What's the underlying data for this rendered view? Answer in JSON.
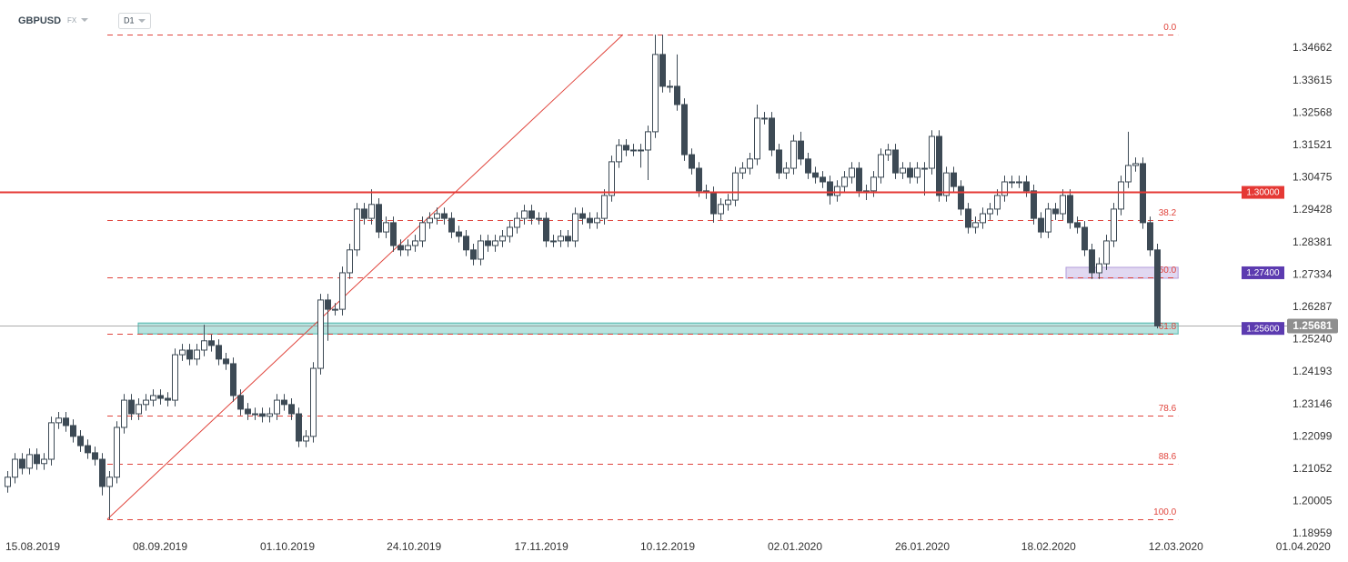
{
  "header": {
    "symbol": "GBPUSD",
    "market": "FX",
    "timeframe": "D1"
  },
  "chart_data": {
    "type": "candlestick",
    "up_color": "#ffffff",
    "down_color": "#3d4a55",
    "outline_color": "#3d4a55",
    "open": [
      1.2049,
      1.2079,
      1.2137,
      1.2108,
      1.2152,
      1.2123,
      1.2137,
      1.2255,
      1.227,
      1.2246,
      1.2211,
      1.2181,
      1.2158,
      1.2137,
      1.2049,
      1.2079,
      1.224,
      1.2328,
      1.2284,
      1.2314,
      1.2328,
      1.2343,
      1.2334,
      1.2328,
      1.2475,
      1.249,
      1.2461,
      1.249,
      1.252,
      1.2505,
      1.2461,
      1.2446,
      1.2343,
      1.2299,
      1.2284,
      1.2284,
      1.2276,
      1.2284,
      1.2328,
      1.2314,
      1.2284,
      1.2196,
      1.2211,
      1.2431,
      1.2652,
      1.2622,
      1.2622,
      1.274,
      1.2814,
      1.2946,
      1.2916,
      1.2961,
      1.2872,
      1.2902,
      1.2828,
      1.2814,
      1.2828,
      1.2843,
      1.2902,
      1.2916,
      1.2931,
      1.2916,
      1.2872,
      1.2858,
      1.2814,
      1.2784,
      1.2843,
      1.2828,
      1.2843,
      1.2858,
      1.2887,
      1.2916,
      1.294,
      1.2916,
      1.2916,
      1.2843,
      1.2843,
      1.2858,
      1.2843,
      1.2931,
      1.2916,
      1.2902,
      1.2916,
      1.299,
      1.3099,
      1.3152,
      1.3137,
      1.3137,
      1.3137,
      1.3196,
      1.3446,
      1.3343,
      1.3343,
      1.3284,
      1.3122,
      1.3078,
      1.3005,
      1.2999,
      1.2931,
      1.2961,
      1.2975,
      1.3063,
      1.3078,
      1.3108,
      1.324,
      1.324,
      1.3137,
      1.3063,
      1.3078,
      1.3166,
      1.3108,
      1.3063,
      1.3049,
      1.3034,
      1.299,
      1.3019,
      1.3049,
      1.3078,
      1.3005,
      1.3005,
      1.3049,
      1.3122,
      1.3137,
      1.3063,
      1.3078,
      1.3049,
      1.3078,
      1.3078,
      1.3181,
      1.299,
      1.3063,
      1.3019,
      1.2946,
      1.2887,
      1.2902,
      1.2931,
      1.2946,
      1.299,
      1.3034,
      1.3034,
      1.3034,
      1.3005,
      1.2916,
      1.2872,
      1.2946,
      1.2931,
      1.299,
      1.2902,
      1.2887,
      1.2814,
      1.274,
      1.2769,
      1.2843,
      1.2946,
      1.3034,
      1.3087,
      1.3093,
      1.2902,
      1.2814
    ],
    "high": [
      1.2099,
      1.2157,
      1.2157,
      1.2172,
      1.2172,
      1.2157,
      1.2275,
      1.229,
      1.229,
      1.2266,
      1.2231,
      1.2201,
      1.2178,
      1.2157,
      1.2099,
      1.226,
      1.2348,
      1.2348,
      1.2334,
      1.2348,
      1.2363,
      1.2363,
      1.2354,
      1.2495,
      1.251,
      1.251,
      1.251,
      1.2572,
      1.254,
      1.2525,
      1.2481,
      1.2466,
      1.2363,
      1.2319,
      1.2304,
      1.2304,
      1.2304,
      1.2348,
      1.2348,
      1.2334,
      1.2304,
      1.2231,
      1.2451,
      1.2672,
      1.2672,
      1.2642,
      1.276,
      1.2834,
      1.2966,
      1.2966,
      1.301,
      1.2981,
      1.2922,
      1.2922,
      1.2848,
      1.2848,
      1.2863,
      1.2922,
      1.2936,
      1.2951,
      1.2951,
      1.2936,
      1.2892,
      1.2878,
      1.2834,
      1.2863,
      1.2863,
      1.2863,
      1.2878,
      1.2907,
      1.2936,
      1.296,
      1.296,
      1.2936,
      1.2936,
      1.2863,
      1.2878,
      1.2878,
      1.2951,
      1.2951,
      1.2936,
      1.2936,
      1.301,
      1.3119,
      1.3172,
      1.3172,
      1.3157,
      1.3157,
      1.3216,
      1.351,
      1.351,
      1.3363,
      1.3446,
      1.3304,
      1.3142,
      1.3098,
      1.3025,
      1.3019,
      1.2981,
      1.2995,
      1.3083,
      1.3098,
      1.3128,
      1.3284,
      1.326,
      1.326,
      1.3157,
      1.3098,
      1.3186,
      1.3196,
      1.3128,
      1.3083,
      1.3069,
      1.3054,
      1.3039,
      1.3069,
      1.3098,
      1.3098,
      1.3025,
      1.3069,
      1.3142,
      1.3157,
      1.3157,
      1.3098,
      1.3098,
      1.3098,
      1.3098,
      1.3201,
      1.3201,
      1.3083,
      1.3083,
      1.3039,
      1.2966,
      1.2922,
      1.2951,
      1.2966,
      1.301,
      1.3054,
      1.3054,
      1.3054,
      1.3054,
      1.3025,
      1.2936,
      1.2966,
      1.2966,
      1.301,
      1.301,
      1.2922,
      1.2907,
      1.2834,
      1.2789,
      1.2863,
      1.2966,
      1.3054,
      1.3196,
      1.3113,
      1.3113,
      1.2922,
      1.2834
    ],
    "low": [
      1.2029,
      1.2059,
      1.2088,
      1.2088,
      1.2103,
      1.2103,
      1.2117,
      1.2235,
      1.2226,
      1.2191,
      1.2161,
      1.2138,
      1.2117,
      1.202,
      1.1943,
      1.2059,
      1.222,
      1.2264,
      1.2264,
      1.2294,
      1.2308,
      1.2314,
      1.2308,
      1.2308,
      1.2455,
      1.2441,
      1.2441,
      1.247,
      1.2485,
      1.2441,
      1.2426,
      1.2323,
      1.2279,
      1.2264,
      1.2264,
      1.2256,
      1.2256,
      1.2264,
      1.2294,
      1.2264,
      1.2176,
      1.2176,
      1.2191,
      1.2411,
      1.252,
      1.2602,
      1.2602,
      1.272,
      1.2794,
      1.2896,
      1.2896,
      1.2852,
      1.2852,
      1.2808,
      1.2794,
      1.2794,
      1.2808,
      1.2823,
      1.2882,
      1.2896,
      1.2896,
      1.2852,
      1.2838,
      1.2794,
      1.2764,
      1.2764,
      1.2808,
      1.2808,
      1.2823,
      1.2838,
      1.2867,
      1.2896,
      1.2896,
      1.2896,
      1.2823,
      1.2823,
      1.2823,
      1.2823,
      1.2823,
      1.2896,
      1.2882,
      1.2882,
      1.2896,
      1.297,
      1.3079,
      1.3117,
      1.3117,
      1.308,
      1.304,
      1.3176,
      1.3323,
      1.3323,
      1.3264,
      1.3102,
      1.3058,
      1.2985,
      1.2979,
      1.2902,
      1.2911,
      1.2941,
      1.2955,
      1.3043,
      1.3058,
      1.3088,
      1.322,
      1.3117,
      1.3043,
      1.3043,
      1.3058,
      1.3088,
      1.3043,
      1.3029,
      1.3014,
      1.2961,
      1.297,
      1.2999,
      1.3029,
      1.2985,
      1.2975,
      1.2985,
      1.3029,
      1.3102,
      1.3043,
      1.3043,
      1.3029,
      1.3029,
      1.299,
      1.3058,
      1.297,
      1.297,
      1.2999,
      1.2926,
      1.2867,
      1.2867,
      1.2882,
      1.2911,
      1.2926,
      1.297,
      1.3014,
      1.3014,
      1.2985,
      1.2896,
      1.2852,
      1.2852,
      1.2911,
      1.2911,
      1.2882,
      1.2867,
      1.2794,
      1.272,
      1.272,
      1.2749,
      1.2823,
      1.2926,
      1.3014,
      1.3067,
      1.2882,
      1.2794,
      1.256
    ],
    "close": [
      1.2079,
      1.2137,
      1.2108,
      1.2152,
      1.2123,
      1.2137,
      1.2255,
      1.227,
      1.2246,
      1.2211,
      1.2181,
      1.2158,
      1.2137,
      1.2049,
      1.2079,
      1.224,
      1.2328,
      1.2284,
      1.2314,
      1.2328,
      1.2343,
      1.2334,
      1.2328,
      1.2475,
      1.249,
      1.2461,
      1.249,
      1.252,
      1.2505,
      1.2461,
      1.2446,
      1.2343,
      1.2299,
      1.2284,
      1.2284,
      1.2276,
      1.2284,
      1.2328,
      1.2314,
      1.2284,
      1.2196,
      1.2211,
      1.2431,
      1.2652,
      1.2622,
      1.2622,
      1.274,
      1.2814,
      1.2946,
      1.2916,
      1.2961,
      1.2872,
      1.2902,
      1.2828,
      1.2814,
      1.2828,
      1.2843,
      1.2902,
      1.2916,
      1.2931,
      1.2916,
      1.2872,
      1.2858,
      1.2814,
      1.2784,
      1.2843,
      1.2828,
      1.2843,
      1.2858,
      1.2887,
      1.2916,
      1.294,
      1.2916,
      1.2916,
      1.2843,
      1.2843,
      1.2858,
      1.2843,
      1.2931,
      1.2916,
      1.2902,
      1.2916,
      1.299,
      1.3099,
      1.3152,
      1.3137,
      1.3137,
      1.3137,
      1.3196,
      1.3446,
      1.3343,
      1.3343,
      1.3284,
      1.3122,
      1.3078,
      1.3005,
      1.2999,
      1.2931,
      1.2961,
      1.2975,
      1.3063,
      1.3078,
      1.3108,
      1.324,
      1.324,
      1.3137,
      1.3063,
      1.3078,
      1.3166,
      1.3108,
      1.3063,
      1.3049,
      1.3034,
      1.299,
      1.3019,
      1.3049,
      1.3078,
      1.3005,
      1.3005,
      1.3049,
      1.3122,
      1.3137,
      1.3063,
      1.3078,
      1.3049,
      1.3078,
      1.3078,
      1.3181,
      1.299,
      1.3063,
      1.3019,
      1.2946,
      1.2887,
      1.2902,
      1.2931,
      1.2946,
      1.299,
      1.3034,
      1.3034,
      1.3034,
      1.3005,
      1.2916,
      1.2872,
      1.2946,
      1.2931,
      1.299,
      1.2902,
      1.2887,
      1.2814,
      1.274,
      1.2769,
      1.2843,
      1.2946,
      1.3034,
      1.3087,
      1.3093,
      1.2902,
      1.2814,
      1.25681
    ],
    "xlim": [
      -1,
      184.25
    ],
    "xticks": [
      {
        "value": 3.5,
        "label": "15.08.2019"
      },
      {
        "value": 21,
        "label": "08.09.2019"
      },
      {
        "value": 38.5,
        "label": "01.10.2019"
      },
      {
        "value": 55.9,
        "label": "24.10.2019"
      },
      {
        "value": 73.4,
        "label": "17.11.2019"
      },
      {
        "value": 90.75,
        "label": "10.12.2019"
      },
      {
        "value": 108.25,
        "label": "02.01.2020"
      },
      {
        "value": 125.75,
        "label": "26.01.2020"
      },
      {
        "value": 143.1,
        "label": "18.02.2020"
      },
      {
        "value": 160.6,
        "label": "12.03.2020"
      },
      {
        "value": 178.1,
        "label": "01.04.2020"
      }
    ],
    "ylim": [
      1.18724,
      1.36221
    ],
    "yticks": [
      1.34662,
      1.33615,
      1.32568,
      1.31521,
      1.30475,
      1.29428,
      1.28381,
      1.27334,
      1.26287,
      {
        "value": 1.2524,
        "label": "1.25240"
      },
      1.24193,
      1.23146,
      1.22099,
      1.21052,
      1.20005,
      1.18959
    ],
    "grid": false,
    "fibonacci": {
      "high": 1.351,
      "low": 1.1943,
      "x": [
        13.75,
        160.9
      ],
      "color": "#e0443c",
      "levels": [
        {
          "value": 0,
          "label": "0.0"
        },
        38.2,
        {
          "value": 50,
          "label": "50.0"
        },
        61.8,
        78.6,
        88.6,
        {
          "value": 100,
          "label": "100.0"
        }
      ]
    },
    "trendline": {
      "x": [
        13.75,
        84.6
      ],
      "y": [
        1.1943,
        1.351
      ],
      "color": "#e0443c"
    },
    "lines": [
      {
        "value": 1.3,
        "label": "1.30000",
        "color": "#e53935"
      }
    ],
    "zones": [
      {
        "value": 1.274,
        "label": "1.27400",
        "x": [
          145.5,
          160.9
        ],
        "color": "#b39ddb",
        "label_color": "#5c3bb0"
      },
      {
        "value": 1.256,
        "label": "1.25600",
        "x": [
          18,
          160.9
        ],
        "color": "#4db6ac",
        "label_color": "#5c3bb0"
      }
    ],
    "current_price": {
      "value": 1.25681,
      "label": "1.25681",
      "color": "#8f8f8f"
    }
  }
}
